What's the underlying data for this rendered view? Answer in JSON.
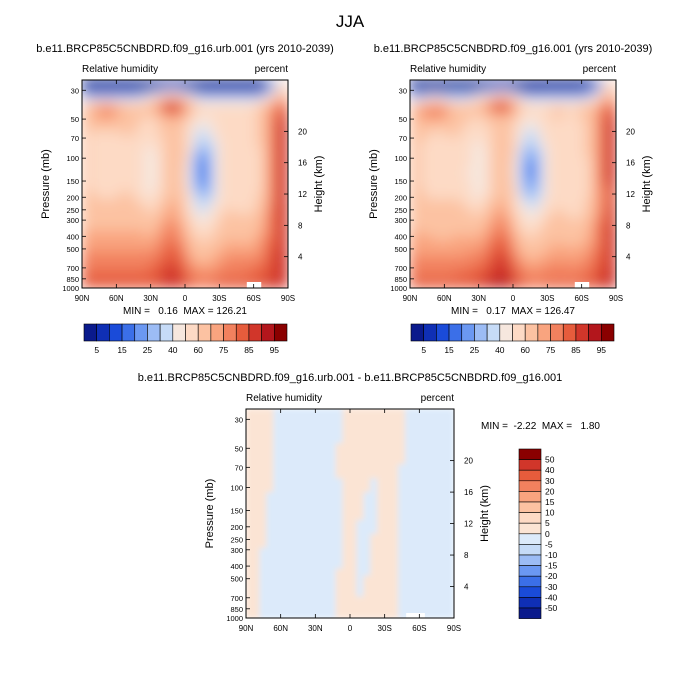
{
  "title": "JJA",
  "colors": {
    "top_palette": [
      "#0a1a8c",
      "#0f2fb5",
      "#1a4bd9",
      "#3b6fe8",
      "#6b98f2",
      "#9cbcf5",
      "#c6dbf7",
      "#f6e7de",
      "#fddac5",
      "#fcc2a2",
      "#f9a47f",
      "#f2815e",
      "#e65c3c",
      "#d1362a",
      "#b3161c",
      "#8a0000"
    ],
    "diff_palette": [
      "#0a1a8c",
      "#0f2fb5",
      "#1a4bd9",
      "#3b6fe8",
      "#6b98f2",
      "#9cbcf5",
      "#c6dbf7",
      "#dceafa",
      "#fbe4d4",
      "#fddac5",
      "#fcc2a2",
      "#f9a47f",
      "#f2815e",
      "#e65c3c",
      "#d1362a",
      "#8a0000"
    ]
  },
  "chart_data": [
    {
      "type": "heatmap",
      "name": "panel-urb",
      "title": "b.e11.BRCP85C5CNBDRD.f09_g16.urb.001 (yrs 2010-2039)",
      "left_label": "Relative humidity",
      "right_label": "percent",
      "xlabel": "",
      "ylabel": "Pressure (mb)",
      "y2label": "Height (km)",
      "x_ticks": [
        "90N",
        "60N",
        "30N",
        "0",
        "30S",
        "60S",
        "90S"
      ],
      "y_ticks": [
        "30",
        "50",
        "70",
        "100",
        "150",
        "200",
        "250",
        "300",
        "400",
        "500",
        "700",
        "850",
        "1000"
      ],
      "y2_ticks": [
        "20",
        "16",
        "12",
        "8",
        "4"
      ],
      "stats_text": "MIN =   0.16  MAX = 126.21",
      "min": 0.16,
      "max": 126.21,
      "colorbar_labels": [
        "5",
        "15",
        "25",
        "40",
        "60",
        "75",
        "85",
        "95"
      ]
    },
    {
      "type": "heatmap",
      "name": "panel-ctl",
      "title": "b.e11.BRCP85C5CNBDRD.f09_g16.001 (yrs 2010-2039)",
      "left_label": "Relative humidity",
      "right_label": "percent",
      "xlabel": "",
      "ylabel": "Pressure (mb)",
      "y2label": "Height (km)",
      "x_ticks": [
        "90N",
        "60N",
        "30N",
        "0",
        "30S",
        "60S",
        "90S"
      ],
      "y_ticks": [
        "30",
        "50",
        "70",
        "100",
        "150",
        "200",
        "250",
        "300",
        "400",
        "500",
        "700",
        "850",
        "1000"
      ],
      "y2_ticks": [
        "20",
        "16",
        "12",
        "8",
        "4"
      ],
      "stats_text": "MIN =   0.17  MAX = 126.47",
      "min": 0.17,
      "max": 126.47,
      "colorbar_labels": [
        "5",
        "15",
        "25",
        "40",
        "60",
        "75",
        "85",
        "95"
      ]
    },
    {
      "type": "heatmap",
      "name": "panel-diff",
      "title": "b.e11.BRCP85C5CNBDRD.f09_g16.urb.001 - b.e11.BRCP85C5CNBDRD.f09_g16.001",
      "left_label": "Relative humidity",
      "right_label": "percent",
      "xlabel": "",
      "ylabel": "Pressure (mb)",
      "y2label": "Height (km)",
      "x_ticks": [
        "90N",
        "60N",
        "30N",
        "0",
        "30S",
        "60S",
        "90S"
      ],
      "y_ticks": [
        "30",
        "50",
        "70",
        "100",
        "150",
        "200",
        "250",
        "300",
        "400",
        "500",
        "700",
        "850",
        "1000"
      ],
      "y2_ticks": [
        "20",
        "16",
        "12",
        "8",
        "4"
      ],
      "stats_text": "MIN =  -2.22  MAX =   1.80",
      "min": -2.22,
      "max": 1.8,
      "colorbar_labels": [
        "50",
        "40",
        "30",
        "20",
        "15",
        "10",
        "5",
        "0",
        "-5",
        "-10",
        "-15",
        "-20",
        "-30",
        "-40",
        "-50"
      ]
    }
  ]
}
